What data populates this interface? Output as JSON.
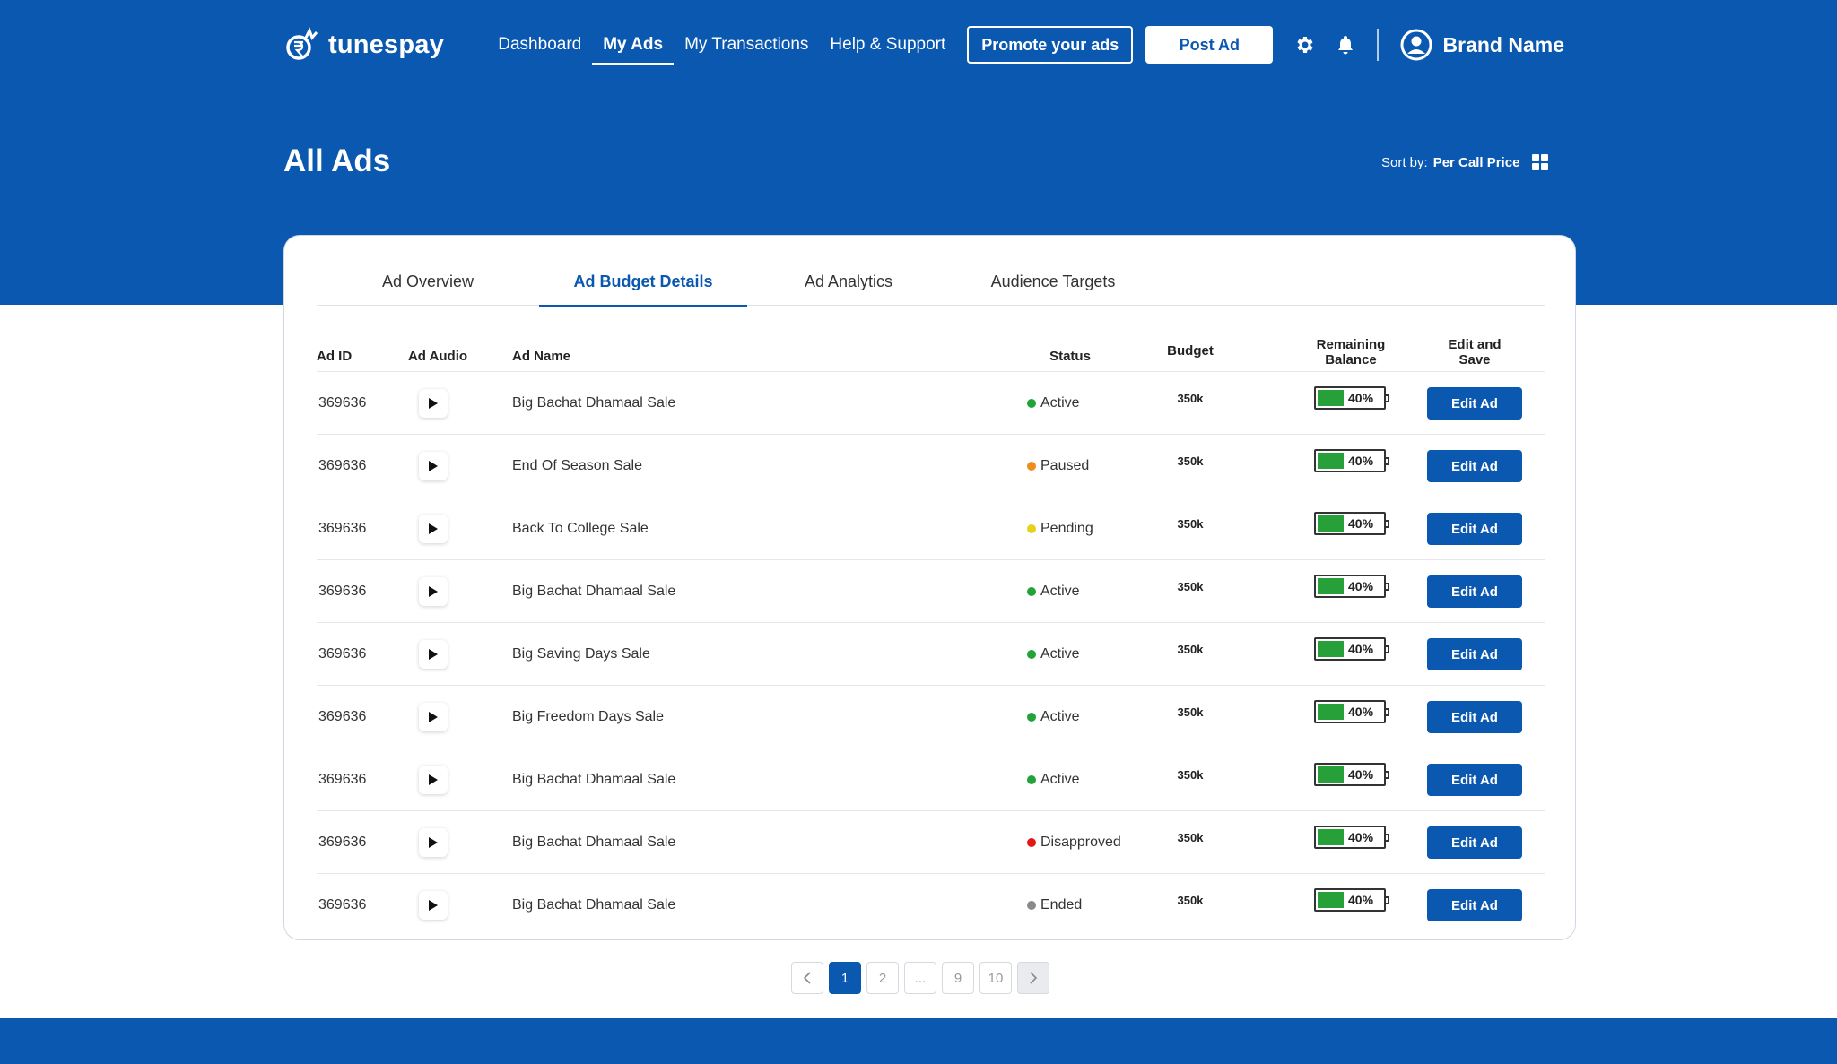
{
  "app": {
    "brand": "tunespay"
  },
  "nav": {
    "items": [
      {
        "label": "Dashboard",
        "active": false
      },
      {
        "label": "My Ads",
        "active": true
      },
      {
        "label": "My Transactions",
        "active": false
      },
      {
        "label": "Help & Support",
        "active": false
      }
    ],
    "promote_label": "Promote your ads",
    "post_label": "Post Ad",
    "user_name": "Brand Name"
  },
  "page": {
    "title": "All Ads",
    "sort_label": "Sort by:",
    "sort_value": "Per Call Price"
  },
  "tabs": [
    {
      "label": "Ad Overview",
      "active": false
    },
    {
      "label": "Ad Budget Details",
      "active": true
    },
    {
      "label": "Ad Analytics",
      "active": false
    },
    {
      "label": "Audience Targets",
      "active": false
    }
  ],
  "table": {
    "headers": {
      "id": "Ad ID",
      "audio": "Ad Audio",
      "name": "Ad Name",
      "status": "Status",
      "budget": "Budget",
      "remaining": "Remaining Balance",
      "edit": "Edit and Save"
    },
    "edit_label": "Edit Ad",
    "rows": [
      {
        "id": "369636",
        "name": "Big Bachat Dhamaal Sale",
        "status": "Active",
        "status_color": "#22a33a",
        "budget": "350k",
        "remaining": 0.4,
        "remaining_label": "40%"
      },
      {
        "id": "369636",
        "name": "End Of Season Sale",
        "status": "Paused",
        "status_color": "#f08c1c",
        "budget": "350k",
        "remaining": 0.4,
        "remaining_label": "40%"
      },
      {
        "id": "369636",
        "name": "Back To College Sale",
        "status": "Pending",
        "status_color": "#e6d21a",
        "budget": "350k",
        "remaining": 0.4,
        "remaining_label": "40%"
      },
      {
        "id": "369636",
        "name": "Big Bachat Dhamaal Sale",
        "status": "Active",
        "status_color": "#22a33a",
        "budget": "350k",
        "remaining": 0.4,
        "remaining_label": "40%"
      },
      {
        "id": "369636",
        "name": "Big Saving Days Sale",
        "status": "Active",
        "status_color": "#22a33a",
        "budget": "350k",
        "remaining": 0.4,
        "remaining_label": "40%"
      },
      {
        "id": "369636",
        "name": "Big Freedom Days Sale",
        "status": "Active",
        "status_color": "#22a33a",
        "budget": "350k",
        "remaining": 0.4,
        "remaining_label": "40%"
      },
      {
        "id": "369636",
        "name": "Big Bachat Dhamaal Sale",
        "status": "Active",
        "status_color": "#22a33a",
        "budget": "350k",
        "remaining": 0.4,
        "remaining_label": "40%"
      },
      {
        "id": "369636",
        "name": "Big Bachat Dhamaal Sale",
        "status": "Disapproved",
        "status_color": "#e01818",
        "budget": "350k",
        "remaining": 0.4,
        "remaining_label": "40%"
      },
      {
        "id": "369636",
        "name": "Big Bachat Dhamaal Sale",
        "status": "Ended",
        "status_color": "#8a8a8a",
        "budget": "350k",
        "remaining": 0.4,
        "remaining_label": "40%"
      }
    ]
  },
  "pagination": {
    "pages": [
      "1",
      "2",
      "...",
      "9",
      "10"
    ],
    "current": "1"
  },
  "colors": {
    "primary": "#0a58b0",
    "battery": "#27a03a"
  },
  "icons": {
    "logo": "tunespay-logo-icon",
    "settings": "gear-icon",
    "notifications": "bell-icon",
    "user": "user-avatar-icon",
    "sort": "grid-icon",
    "play": "play-icon",
    "prev": "chevron-left-icon",
    "next": "chevron-right-icon"
  }
}
